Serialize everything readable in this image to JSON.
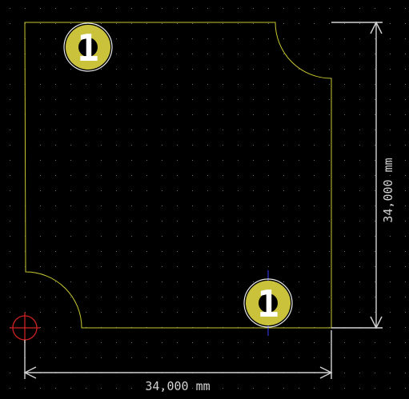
{
  "colors": {
    "background": "#000000",
    "grid_dot": "#6e6e6e",
    "outline": "#c8c832",
    "pad_fill": "#c9c23a",
    "pad_label": "#ffffff",
    "dimension": "#d2d2d2",
    "origin_marker": "#cc2222",
    "cursor_line": "#3b3bff"
  },
  "pads": [
    {
      "label": "1"
    },
    {
      "label": "1"
    }
  ],
  "dimensions": {
    "horizontal_label": "34,000 mm",
    "vertical_label": "34,000 mm"
  },
  "icons": {
    "pad": "through-hole-pad-icon",
    "origin": "grid-origin-crosshair-icon"
  }
}
